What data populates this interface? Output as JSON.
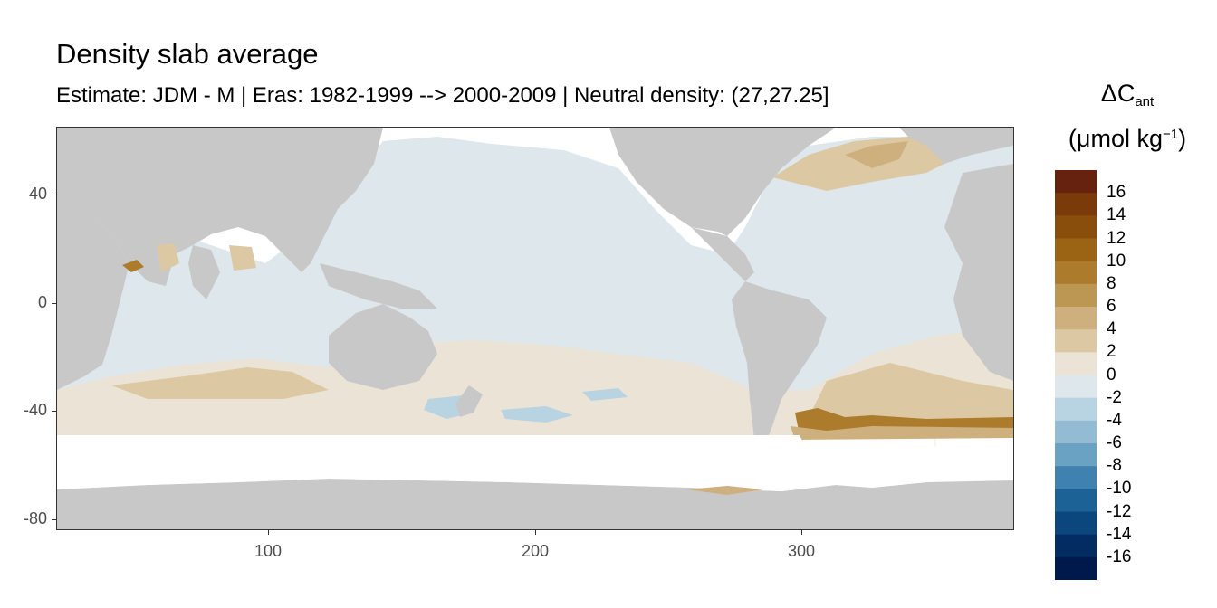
{
  "title": "Density slab average",
  "subtitle": "Estimate: JDM - M | Eras: 1982-1999 --> 2000-2009 | Neutral density: (27,27.25]",
  "legend": {
    "title_symbol": "ΔC",
    "title_subscript": "ant",
    "unit_prefix": "(μmol kg",
    "unit_superscript": "−1",
    "unit_suffix": ")",
    "labels": [
      "16",
      "14",
      "12",
      "10",
      "8",
      "6",
      "4",
      "2",
      "0",
      "-2",
      "-4",
      "-6",
      "-8",
      "-10",
      "-12",
      "-14",
      "-16"
    ],
    "colors": [
      "#67220f",
      "#7b3a0a",
      "#8a4e0c",
      "#9a6414",
      "#ac7c2c",
      "#bc9653",
      "#cdb07e",
      "#dcc9a4",
      "#ebe4d6",
      "#dde7ec",
      "#b8d3e2",
      "#93bcd4",
      "#6aa2c4",
      "#3f82b0",
      "#1d6296",
      "#0b467c",
      "#032c63",
      "#00194c"
    ]
  },
  "axes": {
    "x_ticks": [
      "100",
      "200",
      "300"
    ],
    "y_ticks": [
      "40",
      "0",
      "-40",
      "-80"
    ]
  },
  "map_colors": {
    "land": "#c8c8c8",
    "ocean_neutral": "#dde7ec",
    "light_positive": "#ebe4d6",
    "positive": "#dcc9a4",
    "mid_positive": "#cdb07e",
    "strong_positive": "#ac7c2c",
    "negative": "#b8d3e2",
    "no_data": "#ffffff",
    "grid": "#ebebeb"
  }
}
